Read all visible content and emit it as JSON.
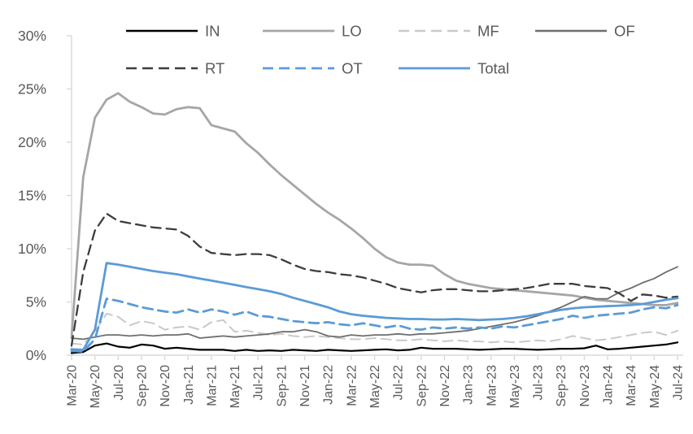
{
  "chart_data": {
    "type": "line",
    "title": "",
    "xlabel": "",
    "ylabel": "",
    "ylim": [
      0,
      30
    ],
    "y_tick_step": 5,
    "y_tick_labels": [
      "0%",
      "5%",
      "10%",
      "15%",
      "20%",
      "25%",
      "30%"
    ],
    "grid": false,
    "legend_position": "top",
    "legend_rows": [
      [
        "IN",
        "LO",
        "MF",
        "OF"
      ],
      [
        "RT",
        "OT",
        "Total"
      ]
    ],
    "x": [
      "Mar-20",
      "Apr-20",
      "May-20",
      "Jun-20",
      "Jul-20",
      "Aug-20",
      "Sep-20",
      "Oct-20",
      "Nov-20",
      "Dec-20",
      "Jan-21",
      "Feb-21",
      "Mar-21",
      "Apr-21",
      "May-21",
      "Jun-21",
      "Jul-21",
      "Aug-21",
      "Sep-21",
      "Oct-21",
      "Nov-21",
      "Dec-21",
      "Jan-22",
      "Feb-22",
      "Mar-22",
      "Apr-22",
      "May-22",
      "Jun-22",
      "Jul-22",
      "Aug-22",
      "Sep-22",
      "Oct-22",
      "Nov-22",
      "Dec-22",
      "Jan-23",
      "Feb-23",
      "Mar-23",
      "Apr-23",
      "May-23",
      "Jun-23",
      "Jul-23",
      "Aug-23",
      "Sep-23",
      "Oct-23",
      "Nov-23",
      "Dec-23",
      "Jan-24",
      "Feb-24",
      "Mar-24",
      "Apr-24",
      "May-24",
      "Jun-24",
      "Jul-24"
    ],
    "x_tick_labels": [
      "Mar-20",
      "May-20",
      "Jul-20",
      "Sep-20",
      "Nov-20",
      "Jan-21",
      "Mar-21",
      "May-21",
      "Jul-21",
      "Sep-21",
      "Nov-21",
      "Jan-22",
      "Mar-22",
      "May-22",
      "Jul-22",
      "Sep-22",
      "Nov-22",
      "Jan-23",
      "Mar-23",
      "May-23",
      "Jul-23",
      "Sep-23",
      "Nov-23",
      "Jan-24",
      "Mar-24",
      "May-24",
      "Jul-24"
    ],
    "x_tick_every": 2,
    "series": [
      {
        "name": "IN",
        "color": "#000000",
        "style": "solid",
        "width": 2.2,
        "values": [
          0.2,
          0.3,
          0.9,
          1.1,
          0.8,
          0.7,
          1.0,
          0.9,
          0.6,
          0.7,
          0.6,
          0.5,
          0.5,
          0.5,
          0.4,
          0.5,
          0.4,
          0.45,
          0.4,
          0.5,
          0.45,
          0.4,
          0.5,
          0.45,
          0.4,
          0.45,
          0.5,
          0.55,
          0.45,
          0.5,
          0.7,
          0.6,
          0.6,
          0.6,
          0.55,
          0.5,
          0.55,
          0.6,
          0.6,
          0.55,
          0.5,
          0.55,
          0.6,
          0.6,
          0.65,
          0.9,
          0.55,
          0.6,
          0.7,
          0.8,
          0.9,
          1.0,
          1.2
        ]
      },
      {
        "name": "LO",
        "color": "#a6a6a6",
        "style": "solid",
        "width": 2.8,
        "values": [
          1.7,
          16.7,
          22.3,
          24.0,
          24.6,
          23.8,
          23.3,
          22.7,
          22.6,
          23.1,
          23.3,
          23.2,
          21.6,
          21.3,
          21.0,
          19.9,
          19.0,
          17.9,
          16.9,
          16.0,
          15.1,
          14.2,
          13.4,
          12.7,
          11.9,
          11.0,
          10.0,
          9.2,
          8.7,
          8.5,
          8.5,
          8.4,
          7.6,
          7.0,
          6.7,
          6.5,
          6.3,
          6.2,
          6.1,
          6.0,
          5.9,
          5.8,
          5.7,
          5.6,
          5.4,
          5.2,
          5.1,
          5.0,
          4.9,
          4.8,
          4.7,
          4.7,
          4.9
        ]
      },
      {
        "name": "MF",
        "color": "#c9c9c9",
        "style": "dashed",
        "width": 2.0,
        "values": [
          1.1,
          1.0,
          2.2,
          3.9,
          3.6,
          2.8,
          3.2,
          3.0,
          2.4,
          2.6,
          2.7,
          2.4,
          3.1,
          3.3,
          2.2,
          2.3,
          2.1,
          1.9,
          2.0,
          1.8,
          1.7,
          1.8,
          1.7,
          1.6,
          1.5,
          1.5,
          1.6,
          1.5,
          1.4,
          1.4,
          1.5,
          1.4,
          1.3,
          1.4,
          1.3,
          1.3,
          1.2,
          1.3,
          1.2,
          1.3,
          1.4,
          1.3,
          1.5,
          1.8,
          1.6,
          1.4,
          1.5,
          1.7,
          1.9,
          2.1,
          2.2,
          1.9,
          2.3
        ]
      },
      {
        "name": "OF",
        "color": "#6e6e6e",
        "style": "solid",
        "width": 1.8,
        "values": [
          1.6,
          1.5,
          1.7,
          1.9,
          1.9,
          1.8,
          1.9,
          1.8,
          1.9,
          1.9,
          2.0,
          1.6,
          1.7,
          1.8,
          1.7,
          1.8,
          1.9,
          2.0,
          2.2,
          2.2,
          2.4,
          2.2,
          1.8,
          1.7,
          1.9,
          1.8,
          1.9,
          1.9,
          2.0,
          1.9,
          2.0,
          2.0,
          2.1,
          2.2,
          2.3,
          2.5,
          2.7,
          2.9,
          3.1,
          3.4,
          3.7,
          4.1,
          4.5,
          5.0,
          5.5,
          5.3,
          5.3,
          5.9,
          6.3,
          6.8,
          7.2,
          7.8,
          8.3
        ]
      },
      {
        "name": "RT",
        "color": "#3d3d3d",
        "style": "dashed",
        "width": 2.3,
        "values": [
          0.9,
          7.8,
          11.7,
          13.3,
          12.6,
          12.4,
          12.2,
          12.0,
          11.9,
          11.8,
          11.2,
          10.2,
          9.6,
          9.5,
          9.4,
          9.5,
          9.5,
          9.4,
          9.0,
          8.5,
          8.1,
          7.9,
          7.8,
          7.6,
          7.5,
          7.3,
          7.0,
          6.7,
          6.3,
          6.1,
          5.9,
          6.1,
          6.2,
          6.2,
          6.1,
          6.0,
          6.0,
          6.1,
          6.2,
          6.3,
          6.5,
          6.7,
          6.7,
          6.7,
          6.5,
          6.4,
          6.3,
          5.8,
          5.1,
          5.7,
          5.6,
          5.4,
          5.5
        ]
      },
      {
        "name": "OT",
        "color": "#5b9bd5",
        "style": "dashed",
        "width": 2.8,
        "values": [
          0.4,
          0.35,
          1.5,
          5.3,
          5.1,
          4.8,
          4.5,
          4.3,
          4.1,
          4.0,
          4.3,
          4.0,
          4.3,
          4.1,
          3.8,
          4.1,
          3.7,
          3.6,
          3.4,
          3.2,
          3.1,
          3.0,
          3.1,
          2.9,
          2.8,
          3.0,
          2.8,
          2.6,
          2.8,
          2.5,
          2.4,
          2.6,
          2.5,
          2.6,
          2.5,
          2.6,
          2.5,
          2.7,
          2.6,
          2.8,
          3.0,
          3.2,
          3.4,
          3.7,
          3.5,
          3.7,
          3.8,
          3.9,
          4.0,
          4.3,
          4.5,
          4.4,
          4.7
        ]
      },
      {
        "name": "Total",
        "color": "#5b9bd5",
        "style": "solid",
        "width": 2.8,
        "values": [
          0.55,
          0.5,
          2.4,
          8.65,
          8.5,
          8.3,
          8.1,
          7.9,
          7.75,
          7.6,
          7.4,
          7.2,
          7.0,
          6.8,
          6.6,
          6.4,
          6.2,
          6.0,
          5.75,
          5.4,
          5.1,
          4.8,
          4.5,
          4.1,
          3.85,
          3.7,
          3.6,
          3.5,
          3.45,
          3.4,
          3.4,
          3.35,
          3.35,
          3.4,
          3.35,
          3.3,
          3.35,
          3.4,
          3.5,
          3.65,
          3.85,
          4.05,
          4.25,
          4.4,
          4.5,
          4.55,
          4.6,
          4.65,
          4.7,
          4.8,
          5.0,
          5.2,
          5.35
        ]
      }
    ]
  },
  "styles": {
    "axis_color": "#d9d9d9",
    "label_color": "#595959",
    "background": "#ffffff"
  }
}
